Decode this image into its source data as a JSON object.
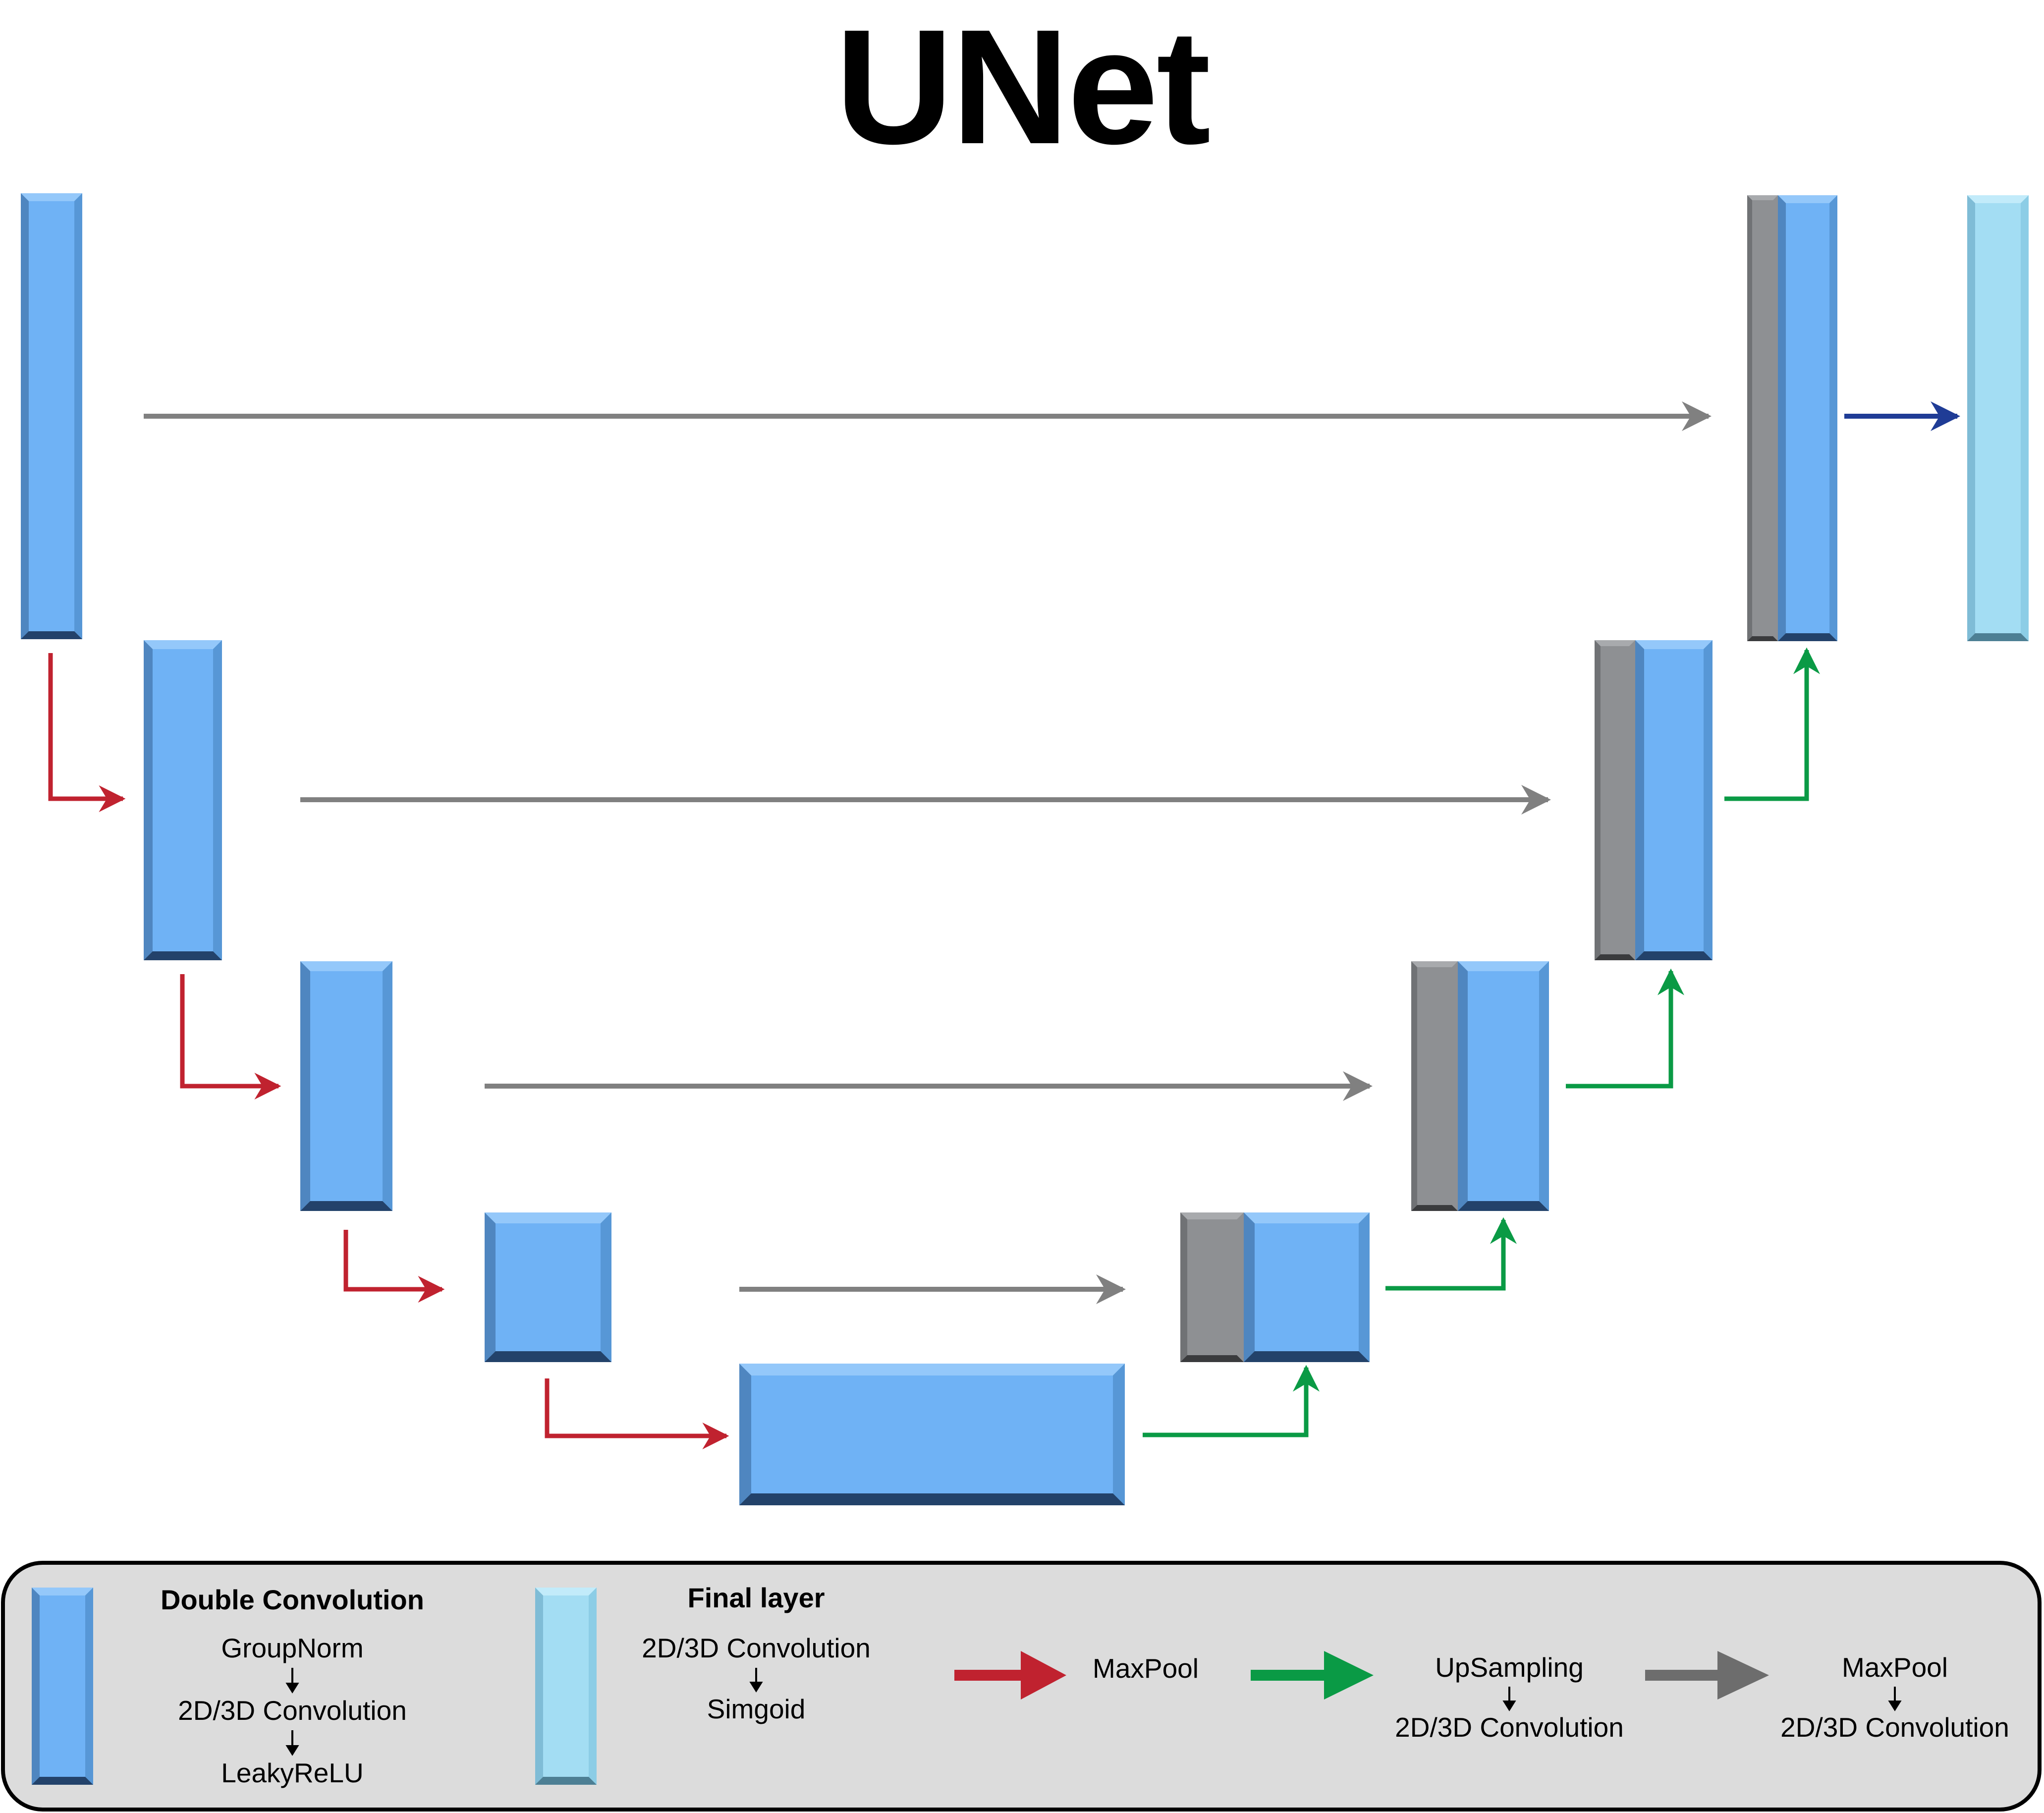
{
  "title": "UNet",
  "colors": {
    "block_blue": "#6fb2f5",
    "skip_gray": "#8e9093",
    "final_cyan": "#a3ddf3",
    "maxpool_arrow": "#c0222f",
    "upsample_arrow": "#0a9a45",
    "skip_arrow": "#808080",
    "final_arrow": "#1f3c96",
    "legend_bg": "#dcdcdc"
  },
  "legend": {
    "double_conv": {
      "title": "Double Convolution",
      "steps": [
        "GroupNorm",
        "2D/3D Convolution",
        "LeakyReLU"
      ]
    },
    "final_layer": {
      "title": "Final layer",
      "steps": [
        "2D/3D Convolution",
        "Simgoid"
      ]
    },
    "maxpool": {
      "steps": [
        "MaxPool"
      ]
    },
    "upsampling": {
      "steps": [
        "UpSampling",
        "2D/3D Convolution"
      ]
    },
    "skip": {
      "steps": [
        "MaxPool",
        "2D/3D Convolution"
      ]
    }
  }
}
